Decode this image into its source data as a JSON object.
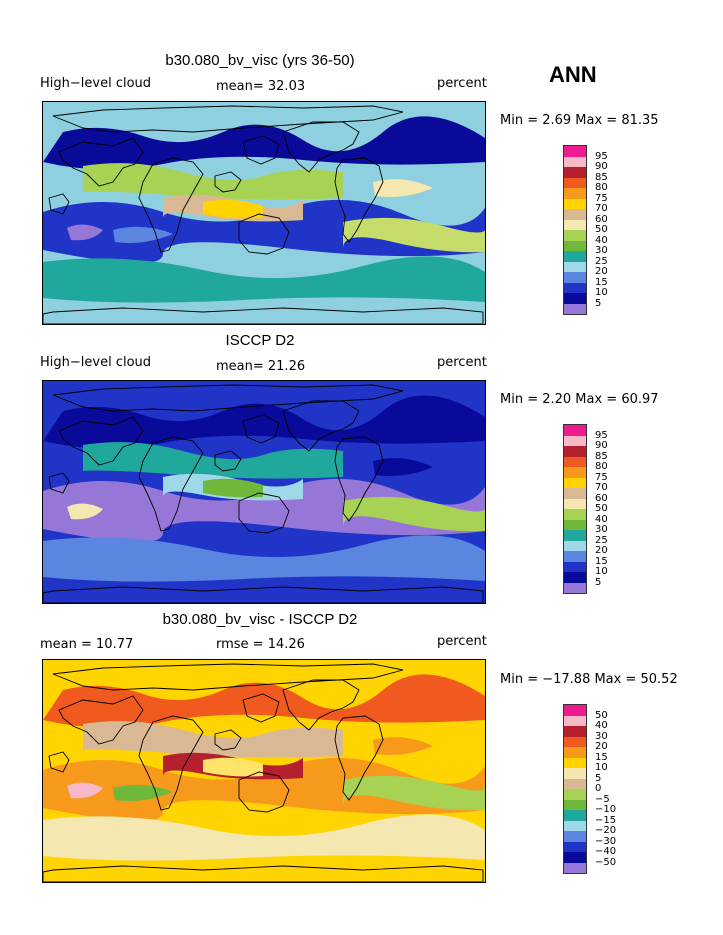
{
  "season": "ANN",
  "panels": [
    {
      "title": "b30.080_bv_visc (yrs 36-50)",
      "left_label": "High−level cloud",
      "center_label": "mean=  32.03",
      "right_label": "percent",
      "range_text": "Min =   2.69 Max =  81.35",
      "bg": "#8fd0e0",
      "colorbar": {
        "labels": [
          "95",
          "90",
          "85",
          "80",
          "75",
          "70",
          "60",
          "50",
          "40",
          "30",
          "25",
          "20",
          "15",
          "10",
          "5"
        ],
        "colors": [
          "#ee1c8f",
          "#f7b8c8",
          "#b5202e",
          "#f05a1e",
          "#f79a1c",
          "#ffd400",
          "#d9b994",
          "#f4e8b0",
          "#a7d254",
          "#6fb83a",
          "#1fa89b",
          "#9fd8e8",
          "#5b86e0",
          "#2035c8",
          "#0a0a9a",
          "#9677d8"
        ]
      },
      "regions": [
        {
          "color": "#2035c8"
        },
        {
          "color": "#0a0a9a"
        },
        {
          "color": "#1fa89b"
        },
        {
          "color": "#a7d254"
        },
        {
          "color": "#c5dc6a"
        },
        {
          "color": "#d9b994"
        },
        {
          "color": "#ffd400"
        },
        {
          "color": "#9677d8"
        },
        {
          "color": "#5b86e0"
        },
        {
          "color": "#f4e8b0"
        }
      ]
    },
    {
      "title": "ISCCP D2",
      "left_label": "High−level cloud",
      "center_label": "mean=  21.26",
      "right_label": "percent",
      "range_text": "Min =   2.20 Max =  60.97",
      "bg": "#2035c8",
      "colorbar": {
        "labels": [
          "95",
          "90",
          "85",
          "80",
          "75",
          "70",
          "60",
          "50",
          "40",
          "30",
          "25",
          "20",
          "15",
          "10",
          "5"
        ],
        "colors": [
          "#ee1c8f",
          "#f7b8c8",
          "#b5202e",
          "#f05a1e",
          "#f79a1c",
          "#ffd400",
          "#d9b994",
          "#f4e8b0",
          "#a7d254",
          "#6fb83a",
          "#1fa89b",
          "#9fd8e8",
          "#5b86e0",
          "#2035c8",
          "#0a0a9a",
          "#9677d8"
        ]
      },
      "regions": [
        {
          "color": "#9677d8"
        },
        {
          "color": "#0a0a9a"
        },
        {
          "color": "#5b86e0"
        },
        {
          "color": "#1fa89b"
        },
        {
          "color": "#a7d254"
        },
        {
          "color": "#9fd8e8"
        },
        {
          "color": "#6fb83a"
        },
        {
          "color": "#f4e8b0"
        },
        {
          "color": "#9677d8"
        },
        {
          "color": "#0a0a9a"
        }
      ]
    },
    {
      "title": "b30.080_bv_visc - ISCCP D2",
      "left_label": "mean =   10.77",
      "center_label": "rmse =   14.26",
      "right_label": "percent",
      "range_text": "Min = −17.88 Max =  50.52",
      "bg": "#ffd400",
      "colorbar": {
        "labels": [
          "50",
          "40",
          "30",
          "20",
          "15",
          "10",
          "5",
          "0",
          "−5",
          "−10",
          "−15",
          "−20",
          "−30",
          "−40",
          "−50"
        ],
        "colors": [
          "#ee1c8f",
          "#f7b8c8",
          "#b5202e",
          "#f05a1e",
          "#f79a1c",
          "#ffd400",
          "#f4e8b0",
          "#d9b994",
          "#a7d254",
          "#6fb83a",
          "#1fa89b",
          "#9fd8e8",
          "#5b86e0",
          "#2035c8",
          "#0a0a9a",
          "#9677d8"
        ]
      },
      "regions": [
        {
          "color": "#f79a1c"
        },
        {
          "color": "#f05a1e"
        },
        {
          "color": "#f4e8b0"
        },
        {
          "color": "#d9b994"
        },
        {
          "color": "#a7d254"
        },
        {
          "color": "#b5202e"
        },
        {
          "color": "#ffe36a"
        },
        {
          "color": "#f7b8c8"
        },
        {
          "color": "#6fb83a"
        },
        {
          "color": "#f79a1c"
        }
      ]
    }
  ]
}
